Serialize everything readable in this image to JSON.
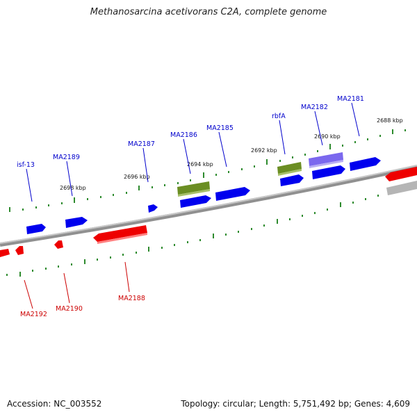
{
  "title": "Methanosarcina acetivorans C2A, complete genome",
  "footer": {
    "accession": "Accession: NC_003552",
    "info": "Topology: circular; Length: 5,751,492 bp; Genes: 4,609"
  },
  "colors": {
    "forward_gene": "#0000ee",
    "reverse_gene": "#ee0000",
    "rna_gene": "#6b8e23",
    "pseudo_gene": "#7b68ee",
    "backbone": "#808080",
    "tick": "#2e8b2e",
    "forward_label": "#0000cc",
    "reverse_label": "#cc0000"
  },
  "scale_labels": [
    {
      "id": "kbp-2698",
      "text": "2698 kbp"
    },
    {
      "id": "kbp-2696",
      "text": "2696 kbp"
    },
    {
      "id": "kbp-2694",
      "text": "2694 kbp"
    },
    {
      "id": "kbp-2692",
      "text": "2692 kbp"
    },
    {
      "id": "kbp-2690",
      "text": "2690 kbp"
    },
    {
      "id": "kbp-2688",
      "text": "2688 kbp"
    }
  ],
  "gene_labels": [
    {
      "id": "isf-13",
      "text": "isf-13",
      "strand": "forward"
    },
    {
      "id": "MA2189",
      "text": "MA2189",
      "strand": "forward"
    },
    {
      "id": "MA2187",
      "text": "MA2187",
      "strand": "forward"
    },
    {
      "id": "MA2186",
      "text": "MA2186",
      "strand": "forward"
    },
    {
      "id": "MA2185",
      "text": "MA2185",
      "strand": "forward"
    },
    {
      "id": "rbfA",
      "text": "rbfA",
      "strand": "forward"
    },
    {
      "id": "MA2182",
      "text": "MA2182",
      "strand": "forward"
    },
    {
      "id": "MA2181",
      "text": "MA2181",
      "strand": "forward"
    },
    {
      "id": "MA2192",
      "text": "MA2192",
      "strand": "reverse"
    },
    {
      "id": "MA2190",
      "text": "MA2190",
      "strand": "reverse"
    },
    {
      "id": "MA2188",
      "text": "MA2188",
      "strand": "reverse"
    }
  ]
}
